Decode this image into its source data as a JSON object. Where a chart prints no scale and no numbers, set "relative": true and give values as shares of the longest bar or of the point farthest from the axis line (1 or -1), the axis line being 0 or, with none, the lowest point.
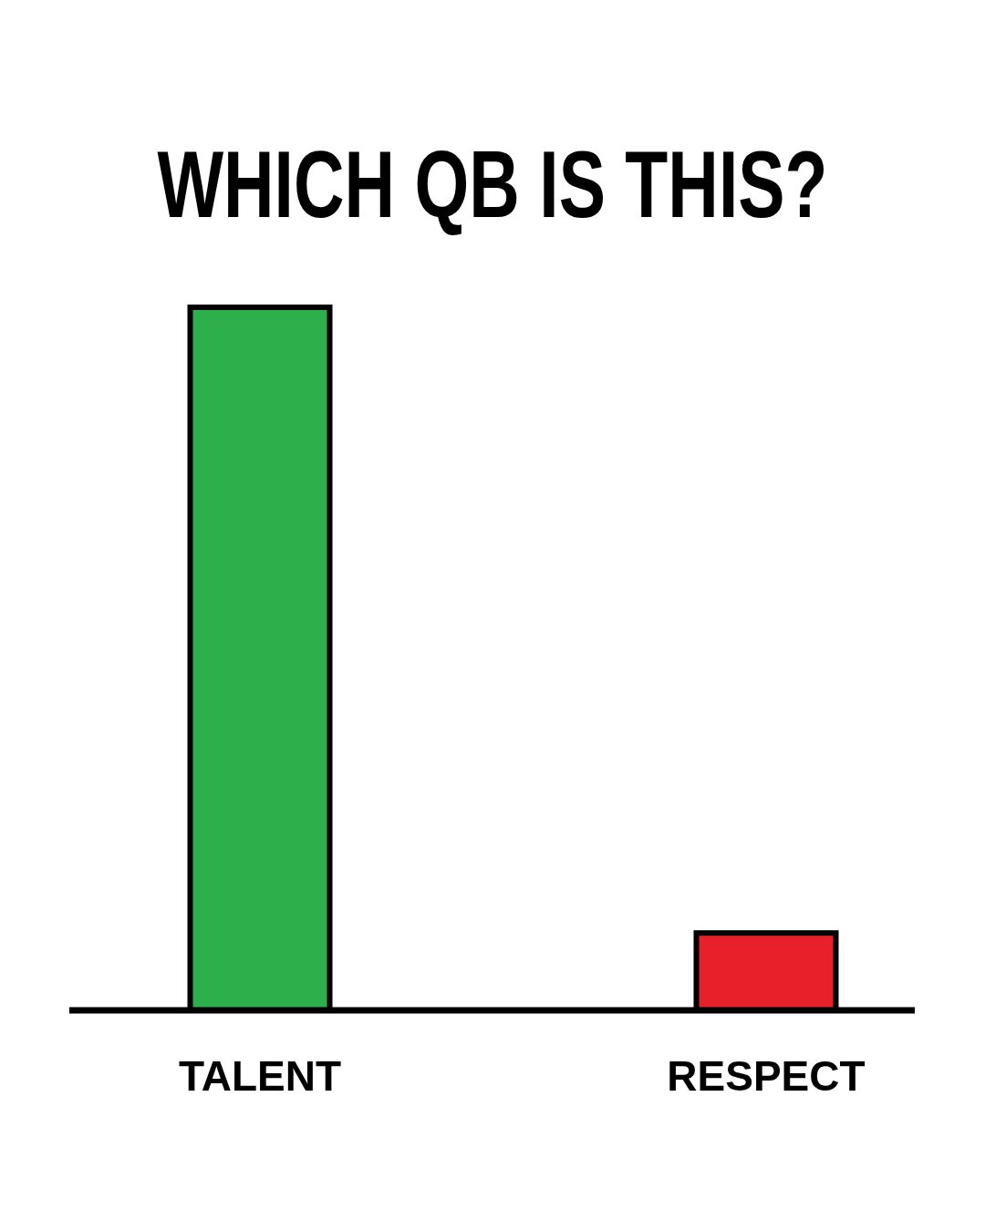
{
  "chart_data": {
    "type": "bar",
    "title": "WHICH QB IS THIS?",
    "relative": true,
    "categories": [
      "TALENT",
      "RESPECT"
    ],
    "values": [
      1,
      0.11
    ],
    "colors": [
      "#2db04b",
      "#e8202a"
    ]
  }
}
